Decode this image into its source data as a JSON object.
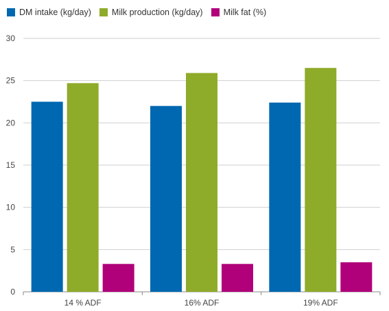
{
  "chart_data": {
    "type": "bar",
    "categories": [
      "14 % ADF",
      "16% ADF",
      "19% ADF"
    ],
    "series": [
      {
        "name": "DM intake (kg/day)",
        "color": "#0068b0",
        "values": [
          22.5,
          22.0,
          22.4
        ]
      },
      {
        "name": "Milk production (kg/day)",
        "color": "#8fab2a",
        "values": [
          24.7,
          25.9,
          26.5
        ]
      },
      {
        "name": "Milk fat (%)",
        "color": "#b0007a",
        "values": [
          3.3,
          3.3,
          3.5
        ]
      }
    ],
    "ylim": [
      0,
      30
    ],
    "yticks": [
      0,
      5,
      10,
      15,
      20,
      25,
      30
    ],
    "grid": true,
    "legend_position": "top-left"
  }
}
